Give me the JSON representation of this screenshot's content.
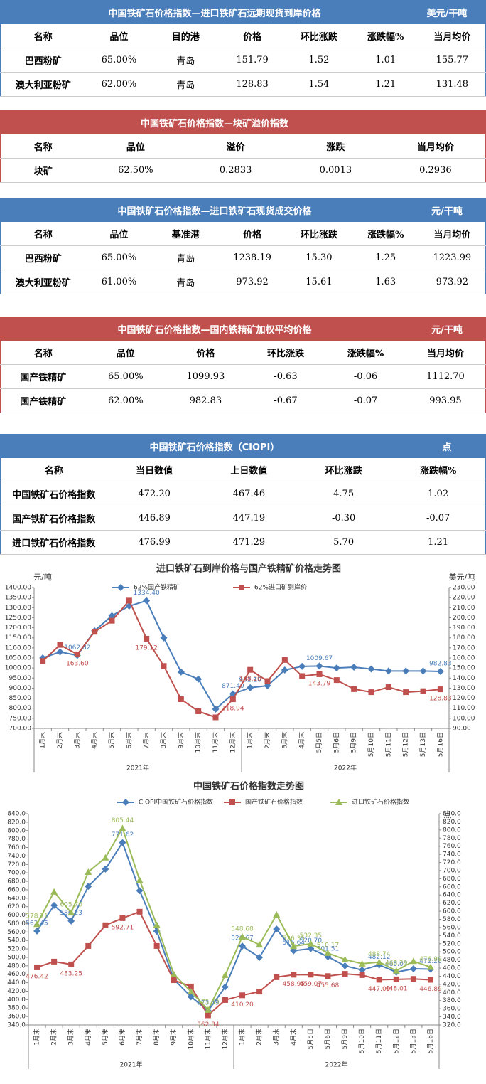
{
  "tables": [
    {
      "title": "中国铁矿石价格指数—进口铁矿石远期现货到岸价格",
      "unit": "美元/干吨",
      "color": "#4a7ebb",
      "header": [
        "名称",
        "品位",
        "目的港",
        "价格",
        "环比涨跌",
        "涨跌幅%",
        "当月均价"
      ],
      "rows": [
        [
          "巴西粉矿",
          "65.00%",
          "青岛",
          "151.79",
          "1.52",
          "1.01",
          "155.77"
        ],
        [
          "澳大利亚粉矿",
          "62.00%",
          "青岛",
          "128.83",
          "1.54",
          "1.21",
          "131.48"
        ]
      ]
    },
    {
      "title": "中国铁矿石价格指数—块矿溢价指数",
      "color": "#c0504d",
      "header": [
        "名称",
        "品位",
        "溢价",
        "涨跌",
        "当月均价"
      ],
      "rows": [
        [
          "块矿",
          "62.50%",
          "0.2833",
          "0.0013",
          "0.2936"
        ]
      ]
    },
    {
      "title": "中国铁矿石价格指数—进口铁矿石现货成交价格",
      "unit": "元/干吨",
      "color": "#4a7ebb",
      "header": [
        "名称",
        "品位",
        "基准港",
        "价格",
        "环比涨跌",
        "涨跌幅%",
        "当月均价"
      ],
      "rows": [
        [
          "巴西粉矿",
          "65.00%",
          "青岛",
          "1238.19",
          "15.30",
          "1.25",
          "1223.99"
        ],
        [
          "澳大利亚粉矿",
          "61.00%",
          "青岛",
          "973.92",
          "15.61",
          "1.63",
          "973.92"
        ]
      ]
    },
    {
      "title": "中国铁矿石价格指数—国内铁精矿加权平均价格",
      "unit": "元/干吨",
      "color": "#c0504d",
      "header": [
        "名称",
        "品位",
        "价格",
        "环比涨跌",
        "涨跌幅%",
        "当月均价"
      ],
      "rows": [
        [
          "国产铁精矿",
          "65.00%",
          "1099.93",
          "-0.63",
          "-0.06",
          "1112.70"
        ],
        [
          "国产铁精矿",
          "62.00%",
          "982.83",
          "-0.67",
          "-0.07",
          "993.95"
        ]
      ]
    },
    {
      "title": "中国铁矿石价格指数（CIOPI）",
      "unit": "点",
      "color": "#4a7ebb",
      "header": [
        "名称",
        "当日数值",
        "上日数值",
        "环比涨跌",
        "涨跌幅%"
      ],
      "rows": [
        [
          "中国铁矿石价格指数",
          "472.20",
          "467.46",
          "4.75",
          "1.02"
        ],
        [
          "国产铁矿石价格指数",
          "446.89",
          "447.19",
          "-0.30",
          "-0.07"
        ],
        [
          "进口铁矿石价格指数",
          "476.99",
          "471.29",
          "5.70",
          "1.21"
        ]
      ]
    }
  ],
  "chart_data": [
    {
      "type": "line",
      "title": "进口铁矿石到岸价格与国产铁精矿价格走势图",
      "ylabel": "元/吨",
      "y2label": "美元/吨",
      "legend": "top",
      "grid": false,
      "categories": [
        "1月末",
        "2月末",
        "3月末",
        "4月末",
        "5月末",
        "6月末",
        "7月末",
        "8月末",
        "9月末",
        "10月末",
        "11月末",
        "12月末",
        "1月末",
        "2月末",
        "3月末",
        "4月末",
        "5月5日",
        "5月6日",
        "5月9日",
        "5月10日",
        "5月11日",
        "5月12日",
        "5月13日",
        "5月16日"
      ],
      "x_groups": [
        {
          "label": "2021年",
          "count": 12
        },
        {
          "label": "2022年",
          "count": 12
        }
      ],
      "ylim": [
        700,
        1400
      ],
      "yticks": [
        {
          "value": 700,
          "label": "700.00"
        },
        {
          "value": 750,
          "label": "750.00"
        },
        {
          "value": 800,
          "label": "800.00"
        },
        {
          "value": 850,
          "label": "850.00"
        },
        {
          "value": 900,
          "label": "900.00"
        },
        {
          "value": 950,
          "label": "950.00"
        },
        {
          "value": 1000,
          "label": "1000.00"
        },
        {
          "value": 1050,
          "label": "1050.00"
        },
        {
          "value": 1100,
          "label": "1100.00"
        },
        {
          "value": 1150,
          "label": "1150.00"
        },
        {
          "value": 1200,
          "label": "1200.00"
        },
        {
          "value": 1250,
          "label": "1250.00"
        },
        {
          "value": 1300,
          "label": "1300.00"
        },
        {
          "value": 1350,
          "label": "1350.00"
        },
        {
          "value": 1400,
          "label": "1400.00"
        }
      ],
      "y2lim": [
        90,
        230
      ],
      "y2ticks": [
        {
          "value": 90,
          "label": "90.00"
        },
        {
          "value": 100,
          "label": "100.00"
        },
        {
          "value": 110,
          "label": "110.00"
        },
        {
          "value": 120,
          "label": "120.00"
        },
        {
          "value": 130,
          "label": "130.00"
        },
        {
          "value": 140,
          "label": "140.00"
        },
        {
          "value": 150,
          "label": "150.00"
        },
        {
          "value": 160,
          "label": "160.00"
        },
        {
          "value": 170,
          "label": "170.00"
        },
        {
          "value": 180,
          "label": "180.00"
        },
        {
          "value": 190,
          "label": "190.00"
        },
        {
          "value": 200,
          "label": "200.00"
        },
        {
          "value": 210,
          "label": "210.00"
        },
        {
          "value": 220,
          "label": "220.00"
        },
        {
          "value": 230,
          "label": "230.00"
        }
      ],
      "series": [
        {
          "name": "62%国产铁精矿",
          "color": "#4a7ebb",
          "marker": "diamond",
          "axis": "y",
          "values": [
            1050,
            1080,
            1062.82,
            1185,
            1260,
            1308,
            1334.4,
            1150,
            980,
            945,
            796,
            871.4,
            902.16,
            912,
            990,
            1008,
            1009.67,
            1000,
            1004,
            995,
            985,
            985,
            985,
            982.83
          ],
          "value_labels": [
            null,
            null,
            "1062.82",
            null,
            null,
            null,
            "1334.40",
            null,
            null,
            null,
            null,
            "871.40",
            "902.16",
            null,
            null,
            null,
            "1009.67",
            null,
            null,
            null,
            null,
            null,
            null,
            "982.83"
          ]
        },
        {
          "name": "62%进口矿到岸价",
          "color": "#c0504d",
          "marker": "square",
          "axis": "y2",
          "values": [
            157,
            173,
            163.6,
            186,
            197,
            217,
            179.12,
            152,
            119,
            107,
            101,
            118.94,
            148.2,
            137,
            158,
            142,
            143.79,
            138,
            129,
            126,
            131,
            126,
            127,
            128.83
          ],
          "value_labels": [
            null,
            null,
            "163.60",
            null,
            null,
            null,
            "179.12",
            null,
            null,
            null,
            null,
            "118.94",
            "148.20",
            null,
            null,
            null,
            "143.79",
            null,
            null,
            null,
            null,
            null,
            null,
            "128.83"
          ]
        }
      ]
    },
    {
      "type": "line",
      "title": "中国铁矿石价格指数走势图",
      "y2label": "点",
      "legend": "top",
      "grid": false,
      "categories": [
        "1月末",
        "2月末",
        "3月末",
        "4月末",
        "5月末",
        "6月末",
        "7月末",
        "8月末",
        "9月末",
        "10月末",
        "11月末",
        "12月末",
        "1月末",
        "2月末",
        "3月末",
        "4月末",
        "5月5日",
        "5月6日",
        "5月9日",
        "5月10日",
        "5月11日",
        "5月12日",
        "5月13日",
        "5月16日"
      ],
      "x_groups": [
        {
          "label": "2021年",
          "count": 12
        },
        {
          "label": "2022年",
          "count": 12
        }
      ],
      "ylim": [
        340,
        840
      ],
      "yticks": [
        {
          "value": 340,
          "label": "340.0"
        },
        {
          "value": 360,
          "label": "360.0"
        },
        {
          "value": 380,
          "label": "380.0"
        },
        {
          "value": 400,
          "label": "400.0"
        },
        {
          "value": 420,
          "label": "420.0"
        },
        {
          "value": 440,
          "label": "440.0"
        },
        {
          "value": 460,
          "label": "460.0"
        },
        {
          "value": 480,
          "label": "480.0"
        },
        {
          "value": 500,
          "label": "500.0"
        },
        {
          "value": 520,
          "label": "520.0"
        },
        {
          "value": 540,
          "label": "540.0"
        },
        {
          "value": 560,
          "label": "560.0"
        },
        {
          "value": 580,
          "label": "580.0"
        },
        {
          "value": 600,
          "label": "600.0"
        },
        {
          "value": 620,
          "label": "620.0"
        },
        {
          "value": 640,
          "label": "640.0"
        },
        {
          "value": 660,
          "label": "660.0"
        },
        {
          "value": 680,
          "label": "680.0"
        },
        {
          "value": 700,
          "label": "700.0"
        },
        {
          "value": 720,
          "label": "720.0"
        },
        {
          "value": 740,
          "label": "740.0"
        },
        {
          "value": 760,
          "label": "760.0"
        },
        {
          "value": 780,
          "label": "780.0"
        },
        {
          "value": 800,
          "label": "800.0"
        },
        {
          "value": 820,
          "label": "820.0"
        },
        {
          "value": 840,
          "label": "840.0"
        }
      ],
      "y2lim": [
        320,
        840
      ],
      "y2ticks": [
        {
          "value": 320,
          "label": "320.0"
        },
        {
          "value": 340,
          "label": "340.0"
        },
        {
          "value": 360,
          "label": "360.0"
        },
        {
          "value": 380,
          "label": "380.0"
        },
        {
          "value": 400,
          "label": "400.0"
        },
        {
          "value": 420,
          "label": "420.0"
        },
        {
          "value": 440,
          "label": "440.0"
        },
        {
          "value": 460,
          "label": "460.0"
        },
        {
          "value": 480,
          "label": "480.0"
        },
        {
          "value": 500,
          "label": "500.0"
        },
        {
          "value": 520,
          "label": "520.0"
        },
        {
          "value": 540,
          "label": "540.0"
        },
        {
          "value": 560,
          "label": "560.0"
        },
        {
          "value": 580,
          "label": "580.0"
        },
        {
          "value": 600,
          "label": "600.0"
        },
        {
          "value": 620,
          "label": "620.0"
        },
        {
          "value": 640,
          "label": "640.0"
        },
        {
          "value": 660,
          "label": "660.0"
        },
        {
          "value": 680,
          "label": "680.0"
        },
        {
          "value": 700,
          "label": "700.0"
        },
        {
          "value": 720,
          "label": "720.0"
        },
        {
          "value": 740,
          "label": "740.0"
        },
        {
          "value": 760,
          "label": "760.0"
        },
        {
          "value": 780,
          "label": "780.0"
        },
        {
          "value": 800,
          "label": "800.0"
        },
        {
          "value": 820,
          "label": "820.0"
        },
        {
          "value": 840,
          "label": "840.0"
        }
      ],
      "series": [
        {
          "name": "CIOPI中国铁矿石价格指数",
          "color": "#4a7ebb",
          "marker": "diamond",
          "axis": "y",
          "values": [
            562.45,
            623,
            586.23,
            668,
            709,
            771.62,
            658,
            562,
            448,
            407,
            373.59,
            430,
            526.67,
            500,
            567,
            515.64,
            520.7,
            501.51,
            480,
            470,
            482.12,
            465.07,
            473,
            472.2
          ],
          "value_labels": [
            "562.45",
            null,
            "586.23",
            null,
            null,
            "771.62",
            null,
            null,
            null,
            null,
            "373.59",
            null,
            "526.67",
            null,
            null,
            "515.64",
            "520.70",
            "501.51",
            null,
            null,
            "482.12",
            "465.07",
            null,
            "472.20"
          ]
        },
        {
          "name": "国产铁矿石价格指数",
          "color": "#c0504d",
          "marker": "square",
          "axis": "y",
          "values": [
            476.42,
            490,
            483.25,
            527,
            576,
            592.71,
            608,
            527,
            446,
            431,
            362.84,
            399,
            410.2,
            419,
            453,
            458.95,
            459.07,
            455.68,
            461,
            458,
            447.09,
            448.01,
            449,
            446.89
          ],
          "value_labels": [
            "476.42",
            null,
            "483.25",
            null,
            null,
            "592.71",
            null,
            null,
            null,
            null,
            "362.84",
            null,
            "410.20",
            null,
            null,
            "458.95",
            "459.07",
            "455.68",
            null,
            null,
            "447.09",
            "448.01",
            null,
            "446.89"
          ]
        },
        {
          "name": "进口铁矿石价格指数",
          "color": "#9bbb59",
          "marker": "triangle",
          "axis": "y",
          "values": [
            578.71,
            655,
            605.7,
            702,
            736,
            805.44,
            683,
            577,
            460,
            419,
            375.63,
            458,
            548.68,
            530,
            601,
            526.35,
            532.35,
            510.17,
            495,
            485,
            488.74,
            468.29,
            491,
            476.99
          ],
          "value_labels": [
            "578.71",
            null,
            "605.70",
            null,
            null,
            "805.44",
            null,
            null,
            null,
            null,
            "375.63",
            null,
            "548.68",
            null,
            null,
            "526.35",
            "532.35",
            "510.17",
            null,
            null,
            "488.74",
            "468.29",
            null,
            "476.99"
          ]
        }
      ]
    }
  ]
}
